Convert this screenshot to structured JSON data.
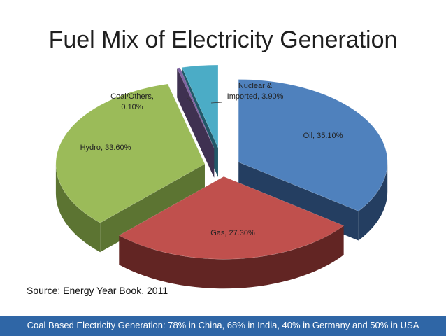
{
  "title": "Fuel Mix of Electricity Generation",
  "source": "Source: Energy Year Book, 2011",
  "banner": "Coal Based Electricity Generation: 78% in China, 68% in India, 40% in Germany and 50% in USA",
  "chart_data": {
    "type": "pie",
    "title": "Fuel Mix of Electricity Generation",
    "style": "3d-exploded",
    "legend": "none",
    "slices": [
      {
        "name": "Oil",
        "value": 35.1,
        "label": "Oil, 35.10%",
        "color": "#4f81bd",
        "side": "#243e61"
      },
      {
        "name": "Gas",
        "value": 27.3,
        "label": "Gas, 27.30%",
        "color": "#c0504d",
        "side": "#622523"
      },
      {
        "name": "Hydro",
        "value": 33.6,
        "label": "Hydro, 33.60%",
        "color": "#9bbb59",
        "side": "#5c7432"
      },
      {
        "name": "Coal/Others",
        "value": 0.1,
        "label_lines": [
          "Coal/Others,",
          "0.10%"
        ],
        "color": "#8064a2",
        "side": "#3f3151"
      },
      {
        "name": "Nuclear & Imported",
        "value": 3.9,
        "label_lines": [
          "Nuclear &",
          "Imported, 3.90%"
        ],
        "color": "#4bacc6",
        "side": "#215868"
      }
    ]
  }
}
